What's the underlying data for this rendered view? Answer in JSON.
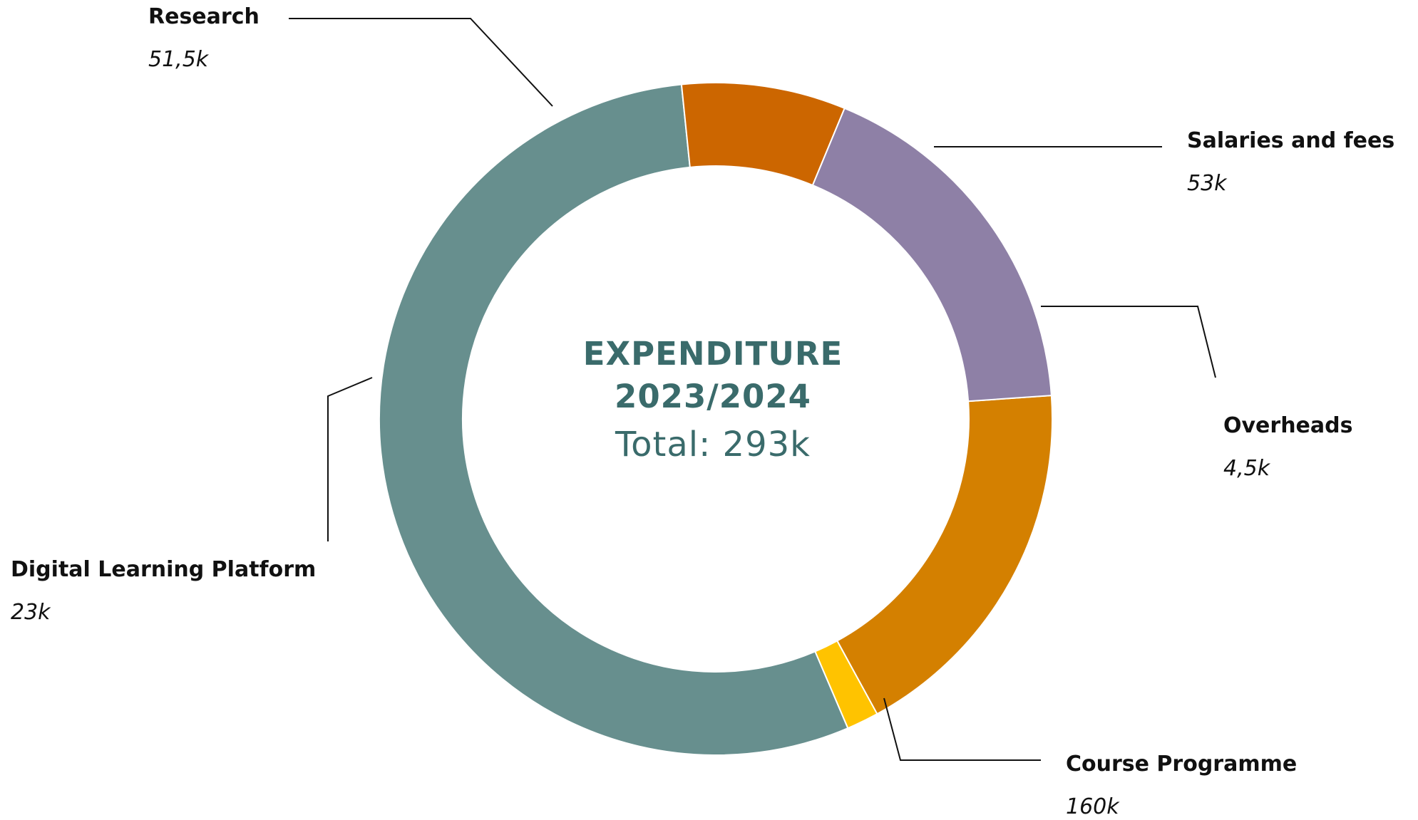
{
  "chart_data": {
    "type": "pie",
    "variant": "donut",
    "title": "EXPENDITURE",
    "subtitle": "2023/2024",
    "total_label": "Total: 293k",
    "slices": [
      {
        "name": "Salaries and fees",
        "value": 53,
        "value_label": "53k",
        "color": "#d48000"
      },
      {
        "name": "Overheads",
        "value": 4.5,
        "value_label": "4,5k",
        "color": "#ffc300"
      },
      {
        "name": "Course Programme",
        "value": 160,
        "value_label": "160k",
        "color": "#678f8e"
      },
      {
        "name": "Digital Learning Platform",
        "value": 23,
        "value_label": "23k",
        "color": "#cc6600"
      },
      {
        "name": "Research",
        "value": 51.5,
        "value_label": "51,5k",
        "color": "#8e80a6"
      }
    ],
    "legend": "none"
  },
  "colors": {
    "center_text": "#3a6b6b",
    "label_text": "#111111",
    "leader_line": "#111111"
  }
}
